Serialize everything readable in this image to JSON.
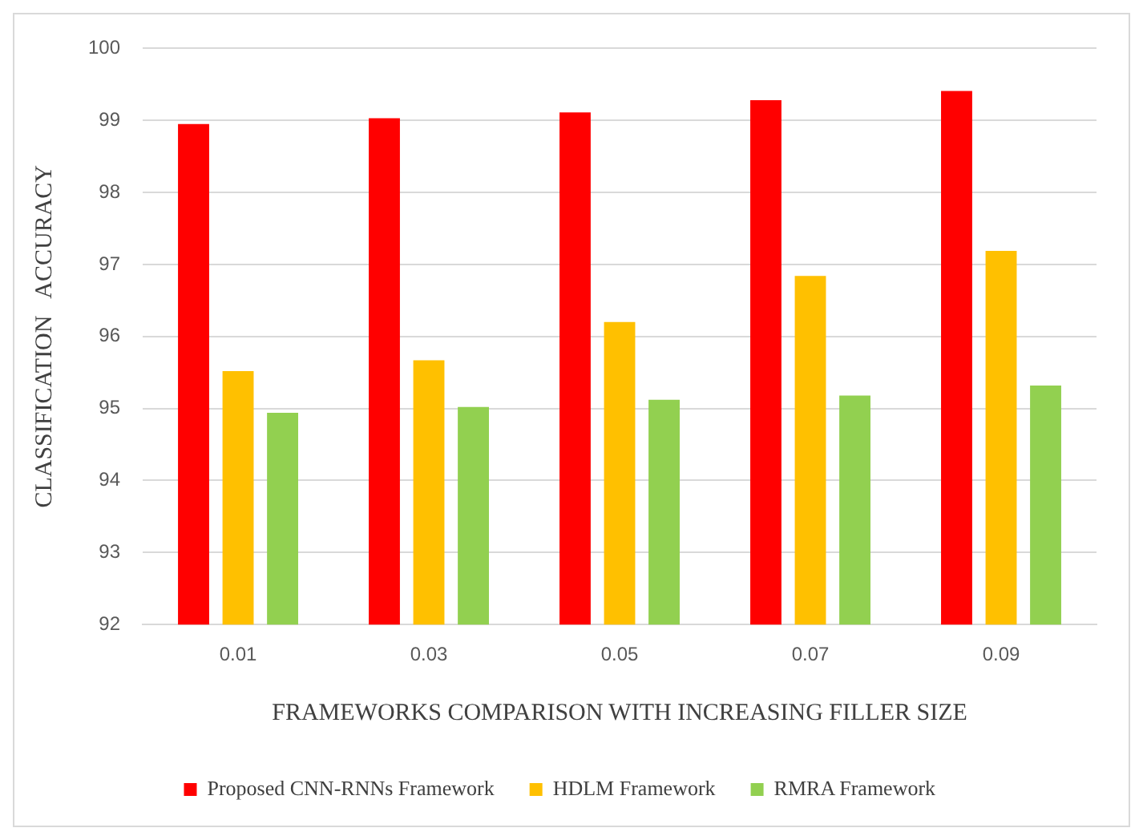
{
  "chart_data": {
    "type": "bar",
    "xlabel": "FRAMEWORKS COMPARISON WITH INCREASING FILLER SIZE",
    "ylabel": "CLASSIFICATION   ACCURACY",
    "categories": [
      "0.01",
      "0.03",
      "0.05",
      "0.07",
      "0.09"
    ],
    "series": [
      {
        "name": "Proposed CNN-RNNs Framework",
        "color": "#ff0000",
        "values": [
          98.95,
          99.03,
          99.11,
          99.28,
          99.41
        ]
      },
      {
        "name": "HDLM Framework",
        "color": "#ffc000",
        "values": [
          95.52,
          95.67,
          96.2,
          96.84,
          97.19
        ]
      },
      {
        "name": "RMRA Framework",
        "color": "#92d050",
        "values": [
          94.94,
          95.02,
          95.12,
          95.18,
          95.32
        ]
      }
    ],
    "ylim": [
      92,
      100
    ],
    "yticks": [
      92,
      93,
      94,
      95,
      96,
      97,
      98,
      99,
      100
    ],
    "grid": "y",
    "legend": "bottom"
  }
}
